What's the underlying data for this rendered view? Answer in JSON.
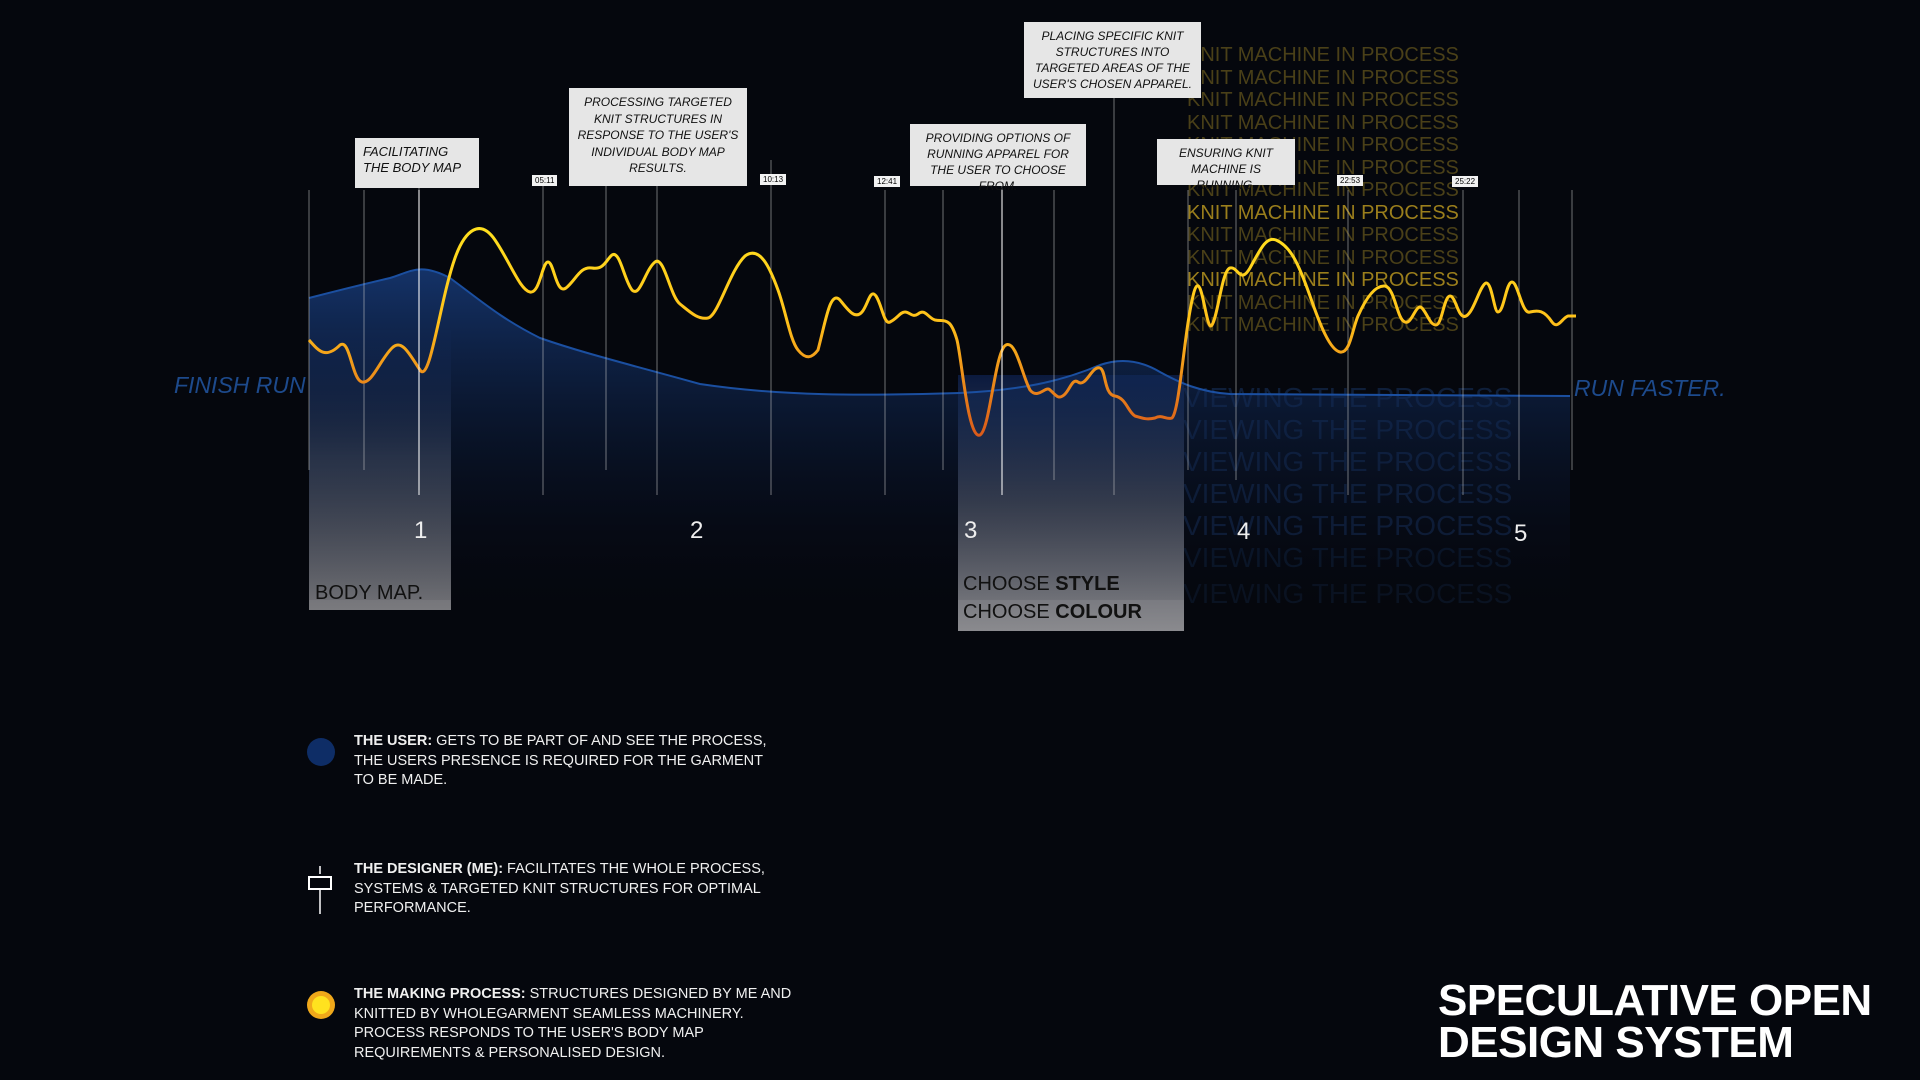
{
  "side_labels": {
    "left": "FINISH RUN",
    "right": "RUN FASTER."
  },
  "callouts": [
    "FACILITATING THE BODY MAP",
    "PROCESSING TARGETED KNIT STRUCTURES IN RESPONSE TO THE USER'S INDIVIDUAL BODY MAP RESULTS.",
    "PROVIDING OPTIONS OF RUNNING APPAREL FOR THE USER TO CHOOSE FROM.",
    "PLACING SPECIFIC KNIT STRUCTURES INTO TARGETED AREAS OF THE USER'S CHOSEN APPAREL.",
    "ENSURING KNIT MACHINE IS RUNNING."
  ],
  "time_tags": [
    "05:11",
    "10:13",
    "12:41",
    "22:53",
    "25:22"
  ],
  "steps": [
    "1",
    "2",
    "3",
    "4",
    "5"
  ],
  "knit_repeat": "KNIT MACHINE IN PROCESS",
  "view_repeat": "VIEWING THE PROCESS",
  "panels": {
    "body_map": "BODY MAP.",
    "choose_style_prefix": "CHOOSE ",
    "choose_style_bold": "STYLE",
    "choose_colour_prefix": "CHOOSE ",
    "choose_colour_bold": "COLOUR"
  },
  "legend": {
    "user_title": "THE USER:",
    "user_text": " GETS TO BE PART OF AND SEE THE PROCESS, THE USERS PRESENCE IS REQUIRED FOR THE GARMENT TO BE MADE.",
    "designer_title": "THE DESIGNER (ME):",
    "designer_text": " FACILITATES THE WHOLE PROCESS, SYSTEMS & TARGETED KNIT STRUCTURES FOR OPTIMAL PERFORMANCE.",
    "making_title": "THE MAKING PROCESS:",
    "making_text": " STRUCTURES DESIGNED BY ME AND KNITTED BY WHOLEGARMENT SEAMLESS MACHINERY. PROCESS RESPONDS TO THE USER'S BODY MAP REQUIREMENTS & PERSONALISED DESIGN."
  },
  "title_lines": [
    "SPECULATIVE OPEN",
    "DESIGN SYSTEM"
  ],
  "colors": {
    "user": "#0e2d66",
    "making": "#ffd21a",
    "making_low": "#e07a1a"
  }
}
